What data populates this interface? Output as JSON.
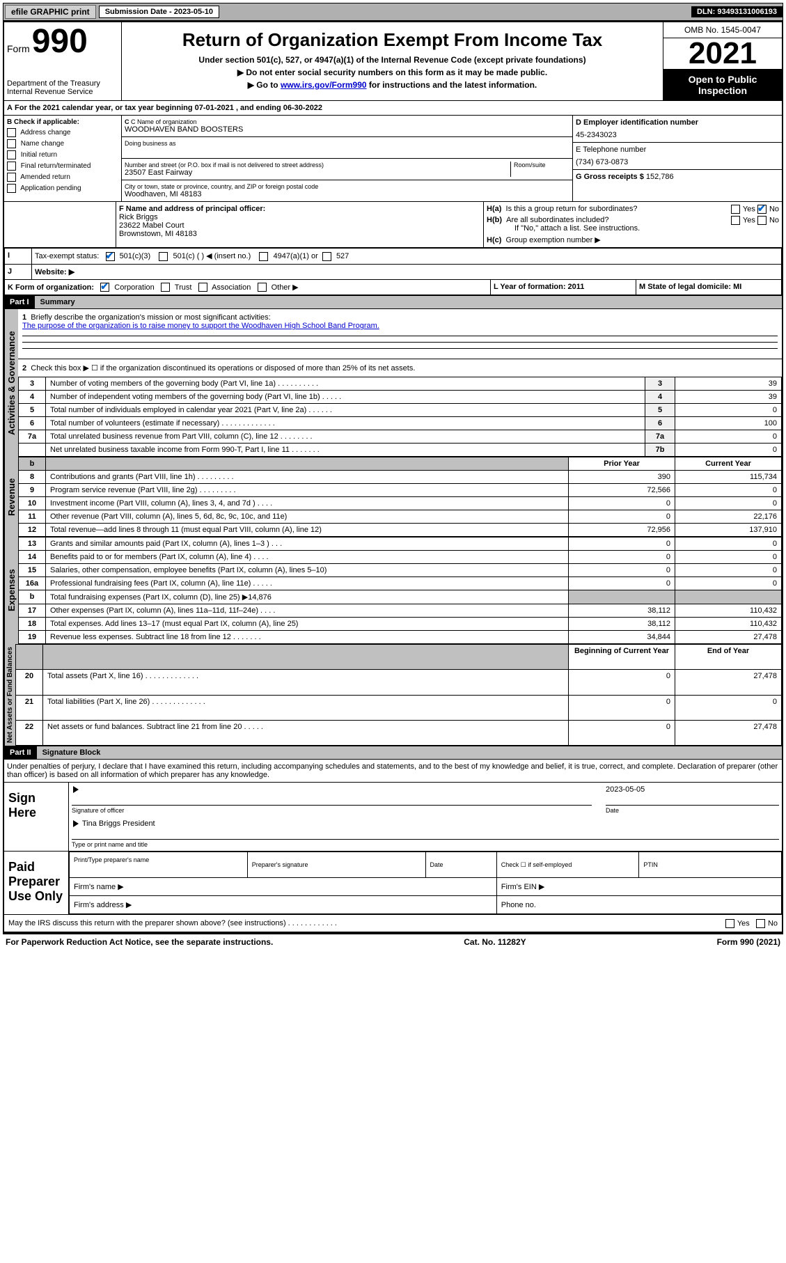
{
  "topbar": {
    "efile_btn": "efile GRAPHIC print",
    "sub_date_label": "Submission Date - 2023-05-10",
    "dln": "DLN: 93493131006193"
  },
  "header": {
    "form_word": "Form",
    "form_num": "990",
    "dept": "Department of the Treasury",
    "irs": "Internal Revenue Service",
    "title": "Return of Organization Exempt From Income Tax",
    "sub1": "Under section 501(c), 527, or 4947(a)(1) of the Internal Revenue Code (except private foundations)",
    "sub2": "▶ Do not enter social security numbers on this form as it may be made public.",
    "sub3_pre": "▶ Go to ",
    "sub3_link": "www.irs.gov/Form990",
    "sub3_post": " for instructions and the latest information.",
    "omb": "OMB No. 1545-0047",
    "year": "2021",
    "open": "Open to Public Inspection"
  },
  "A": {
    "text": "For the 2021 calendar year, or tax year beginning 07-01-2021   , and ending 06-30-2022"
  },
  "B": {
    "label": "B Check if applicable:",
    "items": [
      "Address change",
      "Name change",
      "Initial return",
      "Final return/terminated",
      "Amended return",
      "Application pending"
    ]
  },
  "C": {
    "name_label": "C Name of organization",
    "name_val": "WOODHAVEN BAND BOOSTERS",
    "dba_label": "Doing business as",
    "street_label": "Number and street (or P.O. box if mail is not delivered to street address)",
    "room_label": "Room/suite",
    "street_val": "23507 East Fairway",
    "city_label": "City or town, state or province, country, and ZIP or foreign postal code",
    "city_val": "Woodhaven, MI  48183"
  },
  "D": {
    "label": "D Employer identification number",
    "val": "45-2343023"
  },
  "E": {
    "label": "E Telephone number",
    "val": "(734) 673-0873"
  },
  "G": {
    "label": "G Gross receipts $",
    "val": "152,786"
  },
  "F": {
    "label": "F  Name and address of principal officer:",
    "name": "Rick Briggs",
    "addr1": "23622 Mabel Court",
    "addr2": "Brownstown, MI  48183"
  },
  "H": {
    "a": "Is this a group return for subordinates?",
    "b": "Are all subordinates included?",
    "note": "If \"No,\" attach a list. See instructions.",
    "c": "Group exemption number ▶"
  },
  "I": {
    "label": "Tax-exempt status:",
    "opts": [
      "501(c)(3)",
      "501(c) (   ) ◀ (insert no.)",
      "4947(a)(1) or",
      "527"
    ]
  },
  "J": {
    "label": "Website: ▶"
  },
  "K": {
    "label": "K Form of organization:",
    "opts": [
      "Corporation",
      "Trust",
      "Association",
      "Other ▶"
    ]
  },
  "L": {
    "label": "L Year of formation: 2011"
  },
  "M": {
    "label": "M State of legal domicile: MI"
  },
  "part1": {
    "hdr": "Part I",
    "title": "Summary",
    "q1": "Briefly describe the organization's mission or most significant activities:",
    "q1_ans": "The purpose of the organization is to raise money to support the Woodhaven High School Band Program.",
    "q2": "Check this box ▶ ☐  if the organization discontinued its operations or disposed of more than 25% of its net assets.",
    "rows_ag": [
      {
        "n": "3",
        "txt": "Number of voting members of the governing body (Part VI, line 1a)   .    .    .    .    .    .    .    .    .    .",
        "box": "3",
        "val": "39"
      },
      {
        "n": "4",
        "txt": "Number of independent voting members of the governing body (Part VI, line 1b)    .    .    .    .    .",
        "box": "4",
        "val": "39"
      },
      {
        "n": "5",
        "txt": "Total number of individuals employed in calendar year 2021 (Part V, line 2a)   .    .    .    .    .    .",
        "box": "5",
        "val": "0"
      },
      {
        "n": "6",
        "txt": "Total number of volunteers (estimate if necessary)   .    .    .    .    .    .    .    .    .    .    .    .    .",
        "box": "6",
        "val": "100"
      },
      {
        "n": "7a",
        "txt": "Total unrelated business revenue from Part VIII, column (C), line 12   .    .    .    .    .    .    .    .",
        "box": "7a",
        "val": "0"
      },
      {
        "n": "",
        "txt": "Net unrelated business taxable income from Form 990-T, Part I, line 11   .    .    .    .    .    .    .",
        "box": "7b",
        "val": "0"
      }
    ],
    "col_prior": "Prior Year",
    "col_curr": "Current Year",
    "rows_rev": [
      {
        "n": "8",
        "txt": "Contributions and grants (Part VIII, line 1h)   .    .    .    .    .    .    .    .    .",
        "py": "390",
        "cy": "115,734"
      },
      {
        "n": "9",
        "txt": "Program service revenue (Part VIII, line 2g)   .    .    .    .    .    .    .    .    .",
        "py": "72,566",
        "cy": "0"
      },
      {
        "n": "10",
        "txt": "Investment income (Part VIII, column (A), lines 3, 4, and 7d )   .    .    .    .",
        "py": "0",
        "cy": "0"
      },
      {
        "n": "11",
        "txt": "Other revenue (Part VIII, column (A), lines 5, 6d, 8c, 9c, 10c, and 11e)",
        "py": "0",
        "cy": "22,176"
      },
      {
        "n": "12",
        "txt": "Total revenue—add lines 8 through 11 (must equal Part VIII, column (A), line 12)",
        "py": "72,956",
        "cy": "137,910"
      }
    ],
    "rows_exp": [
      {
        "n": "13",
        "txt": "Grants and similar amounts paid (Part IX, column (A), lines 1–3 )   .    .    .",
        "py": "0",
        "cy": "0"
      },
      {
        "n": "14",
        "txt": "Benefits paid to or for members (Part IX, column (A), line 4)   .    .    .    .",
        "py": "0",
        "cy": "0"
      },
      {
        "n": "15",
        "txt": "Salaries, other compensation, employee benefits (Part IX, column (A), lines 5–10)",
        "py": "0",
        "cy": "0"
      },
      {
        "n": "16a",
        "txt": "Professional fundraising fees (Part IX, column (A), line 11e)   .    .    .    .    .",
        "py": "0",
        "cy": "0"
      },
      {
        "n": "b",
        "txt": "Total fundraising expenses (Part IX, column (D), line 25) ▶14,876",
        "py": "",
        "cy": "",
        "grey": true
      },
      {
        "n": "17",
        "txt": "Other expenses (Part IX, column (A), lines 11a–11d, 11f–24e)   .    .    .    .",
        "py": "38,112",
        "cy": "110,432"
      },
      {
        "n": "18",
        "txt": "Total expenses. Add lines 13–17 (must equal Part IX, column (A), line 25)",
        "py": "38,112",
        "cy": "110,432"
      },
      {
        "n": "19",
        "txt": "Revenue less expenses. Subtract line 18 from line 12   .    .    .    .    .    .    .",
        "py": "34,844",
        "cy": "27,478"
      }
    ],
    "col_beg": "Beginning of Current Year",
    "col_end": "End of Year",
    "rows_na": [
      {
        "n": "20",
        "txt": "Total assets (Part X, line 16)   .    .    .    .    .    .    .    .    .    .    .    .    .",
        "py": "0",
        "cy": "27,478"
      },
      {
        "n": "21",
        "txt": "Total liabilities (Part X, line 26)   .    .    .    .    .    .    .    .    .    .    .    .    .",
        "py": "0",
        "cy": "0"
      },
      {
        "n": "22",
        "txt": "Net assets or fund balances. Subtract line 21 from line 20   .    .    .    .    .",
        "py": "0",
        "cy": "27,478"
      }
    ]
  },
  "part2": {
    "hdr": "Part II",
    "title": "Signature Block",
    "decl": "Under penalties of perjury, I declare that I have examined this return, including accompanying schedules and statements, and to the best of my knowledge and belief, it is true, correct, and complete. Declaration of preparer (other than officer) is based on all information of which preparer has any knowledge.",
    "sign_here": "Sign Here",
    "sig_officer": "Signature of officer",
    "sig_date": "2023-05-05",
    "date_lab": "Date",
    "name_title": "Tina Briggs  President",
    "name_title_lab": "Type or print name and title",
    "paid": "Paid Preparer Use Only",
    "prep_name": "Print/Type preparer's name",
    "prep_sig": "Preparer's signature",
    "prep_date": "Date",
    "prep_chk": "Check ☐ if self-employed",
    "ptin": "PTIN",
    "firm_name": "Firm's name    ▶",
    "firm_ein": "Firm's EIN ▶",
    "firm_addr": "Firm's address ▶",
    "phone": "Phone no.",
    "may_irs": "May the IRS discuss this return with the preparer shown above? (see instructions)   .    .    .    .    .    .    .    .    .    .    .    .",
    "yes": "Yes",
    "no": "No"
  },
  "footer": {
    "left": "For Paperwork Reduction Act Notice, see the separate instructions.",
    "mid": "Cat. No. 11282Y",
    "right": "Form 990 (2021)"
  },
  "side_labels": {
    "ag": "Activities & Governance",
    "rev": "Revenue",
    "exp": "Expenses",
    "na": "Net Assets or Fund Balances"
  }
}
